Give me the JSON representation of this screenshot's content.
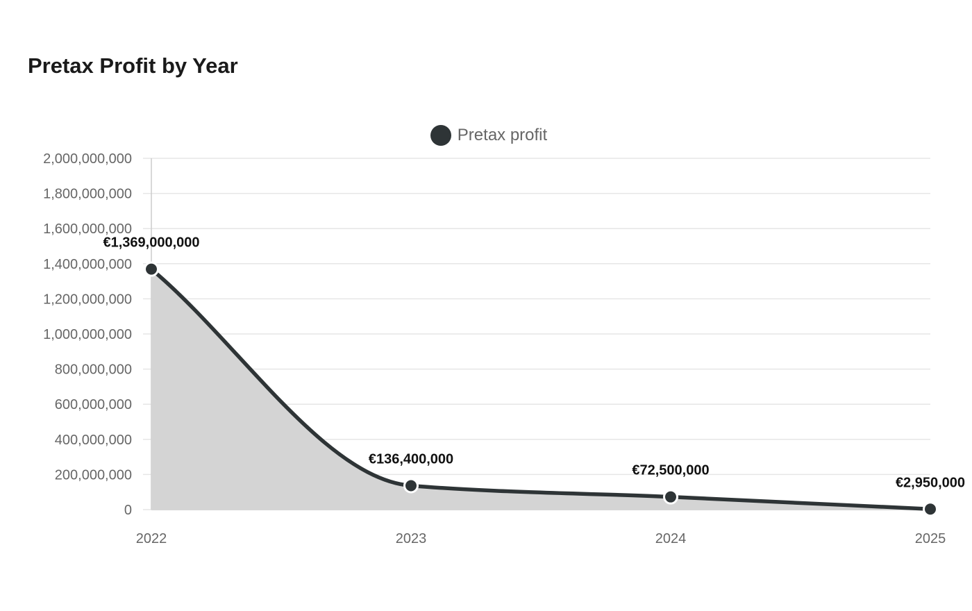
{
  "chart_data": {
    "type": "area",
    "title": "Pretax Profit by Year",
    "categories": [
      "2022",
      "2023",
      "2024",
      "2025"
    ],
    "series": [
      {
        "name": "Pretax profit",
        "values": [
          1369000000,
          136400000,
          72500000,
          2950000
        ],
        "data_labels": [
          "€1,369,000,000",
          "€136,400,000",
          "€72,500,000",
          "€2,950,000"
        ]
      }
    ],
    "ylim": [
      0,
      2000000000
    ],
    "yticks": [
      0,
      200000000,
      400000000,
      600000000,
      800000000,
      1000000000,
      1200000000,
      1400000000,
      1600000000,
      1800000000,
      2000000000
    ],
    "ytick_labels": [
      "0",
      "200,000,000",
      "400,000,000",
      "600,000,000",
      "800,000,000",
      "1,000,000,000",
      "1,200,000,000",
      "1,400,000,000",
      "1,600,000,000",
      "1,800,000,000",
      "2,000,000,000"
    ],
    "xlabel": "",
    "ylabel": "",
    "grid": true,
    "legend": "top-center",
    "colors": {
      "line": "#2e3436",
      "fill": "#d4d4d4",
      "grid": "#e6e6e6",
      "axis": "#cccccc"
    }
  }
}
